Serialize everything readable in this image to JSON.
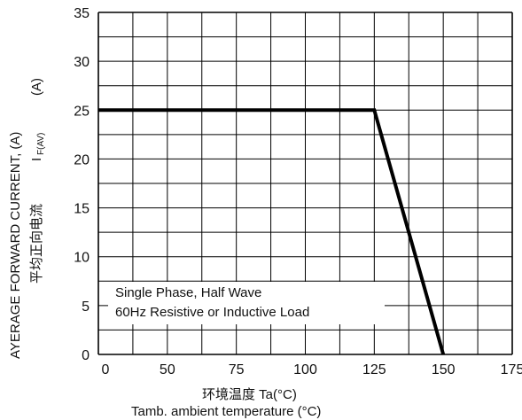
{
  "chart_data": {
    "type": "line",
    "x_label_native": "环境温度  Ta(°C)",
    "xlabel": "Tamb. ambient temperature (°C)",
    "ylabel": "AYERAGE FORWARD CURRENT, (A)",
    "y_label_native": "平均正向电流",
    "y_symbol_main": "I",
    "y_symbol_sub": "F(AV)",
    "y_symbol_unit": "(A)",
    "x_ticks": [
      "0",
      "50",
      "75",
      "100",
      "125",
      "150",
      "175"
    ],
    "y_ticks": [
      "0",
      "5",
      "10",
      "15",
      "20",
      "25",
      "30",
      "35"
    ],
    "xlim": [
      25,
      175
    ],
    "ylim": [
      0,
      35
    ],
    "grid": true,
    "annotation": [
      "Single Phase, Half Wave",
      "60Hz Resistive or Inductive Load"
    ],
    "series": [
      {
        "x": [
          25,
          125,
          150
        ],
        "y": [
          25,
          25,
          0
        ]
      }
    ]
  },
  "colors": {
    "line": "#000000",
    "grid": "#000000",
    "background": "#ffffff"
  }
}
